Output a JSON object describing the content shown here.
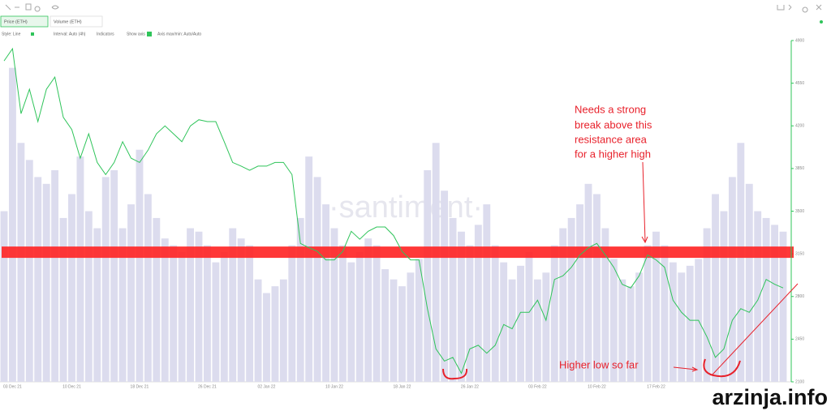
{
  "toolbar": {
    "tabs": [
      "Price (ETH)",
      "Volume (ETH)"
    ],
    "options": [
      "Style: Line",
      "Interval: Auto (4h)",
      "Indicators",
      "Show axis",
      "Axis max/min: Auto/Auto"
    ]
  },
  "watermark": "·santiment·",
  "site": "arzinja.info",
  "chart_data": {
    "type": "line",
    "categories": [
      null,
      "03 Dec 21",
      null,
      null,
      null,
      null,
      null,
      null,
      "10 Dec 21",
      null,
      null,
      null,
      null,
      null,
      null,
      null,
      "18 Dec 21",
      null,
      null,
      null,
      null,
      null,
      null,
      null,
      "26 Dec 21",
      null,
      null,
      null,
      null,
      null,
      null,
      "02 Jan 22",
      null,
      null,
      null,
      null,
      null,
      null,
      null,
      "10 Jan 22",
      null,
      null,
      null,
      null,
      null,
      null,
      null,
      "18 Jan 22",
      null,
      null,
      null,
      null,
      null,
      null,
      null,
      "26 Jan 22",
      null,
      null,
      null,
      null,
      null,
      null,
      null,
      "03 Feb 22",
      null,
      null,
      null,
      null,
      null,
      null,
      "10 Feb 22",
      null,
      null,
      null,
      null,
      null,
      null,
      "17 Feb 22",
      null,
      null,
      null,
      null,
      null,
      null,
      null,
      null,
      null,
      null,
      null,
      null,
      null,
      null,
      null
    ],
    "series": [
      {
        "name": "Price (ETH)",
        "color": "#2fc45a",
        "axis": "y",
        "values": [
          4733,
          4833,
          4300,
          4500,
          4235,
          4500,
          4600,
          4270,
          4170,
          3935,
          4135,
          3900,
          3800,
          3900,
          4070,
          3935,
          3900,
          4000,
          4135,
          4200,
          4135,
          4070,
          4200,
          4250,
          4235,
          4235,
          4070,
          3900,
          3870,
          3835,
          3870,
          3870,
          3900,
          3900,
          3800,
          3235,
          3200,
          3170,
          3100,
          3100,
          3170,
          3335,
          3270,
          3335,
          3370,
          3370,
          3300,
          3170,
          3100,
          3100,
          2700,
          2370,
          2270,
          2300,
          2170,
          2370,
          2400,
          2335,
          2400,
          2570,
          2535,
          2670,
          2670,
          2770,
          2605,
          2940,
          2970,
          3040,
          3140,
          3200,
          3235,
          3140,
          3040,
          2900,
          2870,
          2970,
          3140,
          3100,
          3040,
          2770,
          2670,
          2605,
          2605,
          2470,
          2300,
          2370,
          2605,
          2700,
          2670,
          2770,
          2940,
          2900,
          2870
        ]
      },
      {
        "name": "Volume (ETH)",
        "color": "#dcdcee",
        "axis": "y2",
        "type": "bar",
        "values": [
          50,
          92,
          70,
          65,
          60,
          58,
          62,
          48,
          55,
          66,
          50,
          45,
          60,
          62,
          45,
          52,
          68,
          55,
          48,
          42,
          40,
          38,
          45,
          44,
          40,
          35,
          38,
          45,
          42,
          40,
          30,
          26,
          28,
          30,
          40,
          48,
          66,
          60,
          52,
          45,
          40,
          35,
          38,
          42,
          40,
          33,
          30,
          28,
          32,
          36,
          62,
          70,
          56,
          48,
          44,
          40,
          46,
          52,
          40,
          35,
          30,
          34,
          38,
          30,
          32,
          40,
          45,
          48,
          52,
          58,
          55,
          45,
          36,
          30,
          28,
          32,
          40,
          44,
          40,
          35,
          32,
          34,
          36,
          45,
          55,
          50,
          60,
          70,
          58,
          50,
          48,
          46,
          44
        ]
      }
    ],
    "ylim": [
      2100,
      4900
    ],
    "yticks": [
      2100,
      2450,
      2800,
      3150,
      3500,
      3850,
      4200,
      4550,
      4900
    ],
    "y2lim": [
      0,
      100
    ],
    "resistance_band": [
      3117,
      3210
    ],
    "resistance_color": "#ff2222",
    "annotations": {
      "resistance": [
        "Needs a strong",
        "break above this",
        "resistance area",
        "for a higher high"
      ],
      "low": "Higher low so far"
    }
  }
}
